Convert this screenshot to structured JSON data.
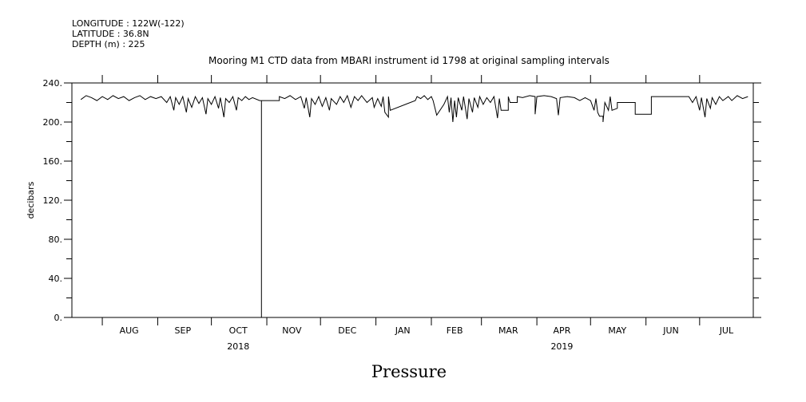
{
  "header": {
    "longitude": "LONGITUDE : 122W(-122)",
    "latitude": "LATITUDE : 36.8N",
    "depth": "DEPTH (m) : 225"
  },
  "chart_data": {
    "type": "line",
    "title": "Mooring M1 CTD data from MBARI instrument id 1798 at original sampling intervals",
    "bottom_title": "Pressure",
    "ylabel": "decibars",
    "ylim": [
      0,
      240
    ],
    "yticks": [
      {
        "value": 0,
        "label": "0."
      },
      {
        "value": 40,
        "label": "40."
      },
      {
        "value": 80,
        "label": "80."
      },
      {
        "value": 120,
        "label": "120."
      },
      {
        "value": 160,
        "label": "160."
      },
      {
        "value": 200,
        "label": "200."
      },
      {
        "value": 240,
        "label": "240."
      }
    ],
    "x_start": "2018-07-15",
    "x_end": "2019-07-31",
    "month_labels": [
      {
        "label": "AUG",
        "date": "2018-08-16"
      },
      {
        "label": "SEP",
        "date": "2018-09-15"
      },
      {
        "label": "OCT",
        "date": "2018-10-16"
      },
      {
        "label": "NOV",
        "date": "2018-11-15"
      },
      {
        "label": "DEC",
        "date": "2018-12-16"
      },
      {
        "label": "JAN",
        "date": "2019-01-16"
      },
      {
        "label": "FEB",
        "date": "2019-02-14"
      },
      {
        "label": "MAR",
        "date": "2019-03-16"
      },
      {
        "label": "APR",
        "date": "2019-04-15"
      },
      {
        "label": "MAY",
        "date": "2019-05-16"
      },
      {
        "label": "JUN",
        "date": "2019-06-15"
      },
      {
        "label": "JUL",
        "date": "2019-07-16"
      }
    ],
    "month_boundaries": [
      "2018-08-01",
      "2018-09-01",
      "2018-10-01",
      "2018-11-01",
      "2018-12-01",
      "2019-01-01",
      "2019-02-01",
      "2019-03-01",
      "2019-04-01",
      "2019-05-01",
      "2019-06-01",
      "2019-07-01"
    ],
    "year_labels": [
      {
        "label": "2018",
        "date": "2018-10-16"
      },
      {
        "label": "2019",
        "date": "2019-04-15"
      }
    ],
    "series": [
      {
        "points": [
          [
            "2018-07-20",
            223
          ],
          [
            "2018-07-23",
            227
          ],
          [
            "2018-07-26",
            225
          ],
          [
            "2018-07-29",
            222
          ],
          [
            "2018-08-01",
            226
          ],
          [
            "2018-08-04",
            223
          ],
          [
            "2018-08-07",
            227
          ],
          [
            "2018-08-10",
            224
          ],
          [
            "2018-08-13",
            226
          ],
          [
            "2018-08-16",
            222
          ],
          [
            "2018-08-19",
            225
          ],
          [
            "2018-08-22",
            227
          ],
          [
            "2018-08-25",
            223
          ],
          [
            "2018-08-28",
            226
          ],
          [
            "2018-08-31",
            224
          ],
          [
            "2018-09-03",
            226
          ],
          [
            "2018-09-06",
            220
          ],
          [
            "2018-09-08",
            226
          ],
          [
            "2018-09-10",
            212
          ],
          [
            "2018-09-11",
            225
          ],
          [
            "2018-09-13",
            218
          ],
          [
            "2018-09-15",
            226
          ],
          [
            "2018-09-17",
            210
          ],
          [
            "2018-09-18",
            224
          ],
          [
            "2018-09-20",
            215
          ],
          [
            "2018-09-22",
            226
          ],
          [
            "2018-09-24",
            219
          ],
          [
            "2018-09-26",
            225
          ],
          [
            "2018-09-28",
            208
          ],
          [
            "2018-09-29",
            224
          ],
          [
            "2018-10-01",
            218
          ],
          [
            "2018-10-03",
            226
          ],
          [
            "2018-10-05",
            214
          ],
          [
            "2018-10-06",
            225
          ],
          [
            "2018-10-08",
            205
          ],
          [
            "2018-10-09",
            224
          ],
          [
            "2018-10-11",
            220
          ],
          [
            "2018-10-13",
            226
          ],
          [
            "2018-10-15",
            212
          ],
          [
            "2018-10-16",
            225
          ],
          [
            "2018-10-18",
            222
          ],
          [
            "2018-10-20",
            226
          ],
          [
            "2018-10-22",
            223
          ],
          [
            "2018-10-24",
            225
          ],
          [
            "2018-10-28",
            222
          ],
          [
            "2018-10-29",
            222
          ],
          [
            "2018-10-29",
            0
          ],
          [
            "2018-10-29",
            222
          ],
          [
            "2018-11-08",
            222
          ],
          [
            "2018-11-08",
            226
          ],
          [
            "2018-11-11",
            224
          ],
          [
            "2018-11-14",
            227
          ],
          [
            "2018-11-17",
            223
          ],
          [
            "2018-11-20",
            226
          ],
          [
            "2018-11-22",
            214
          ],
          [
            "2018-11-23",
            225
          ],
          [
            "2018-11-25",
            205
          ],
          [
            "2018-11-26",
            224
          ],
          [
            "2018-11-28",
            218
          ],
          [
            "2018-11-30",
            226
          ],
          [
            "2018-12-02",
            216
          ],
          [
            "2018-12-04",
            225
          ],
          [
            "2018-12-06",
            212
          ],
          [
            "2018-12-07",
            224
          ],
          [
            "2018-12-10",
            218
          ],
          [
            "2018-12-12",
            226
          ],
          [
            "2018-12-14",
            220
          ],
          [
            "2018-12-16",
            227
          ],
          [
            "2018-12-18",
            215
          ],
          [
            "2018-12-20",
            226
          ],
          [
            "2018-12-22",
            222
          ],
          [
            "2018-12-24",
            227
          ],
          [
            "2018-12-27",
            220
          ],
          [
            "2018-12-30",
            225
          ],
          [
            "2018-12-31",
            215
          ],
          [
            "2019-01-02",
            224
          ],
          [
            "2019-01-04",
            216
          ],
          [
            "2019-01-05",
            226
          ],
          [
            "2019-01-06",
            210
          ],
          [
            "2019-01-08",
            205
          ],
          [
            "2019-01-08",
            226
          ],
          [
            "2019-01-09",
            212
          ],
          [
            "2019-01-23",
            222
          ],
          [
            "2019-01-24",
            226
          ],
          [
            "2019-01-26",
            224
          ],
          [
            "2019-01-28",
            227
          ],
          [
            "2019-01-30",
            223
          ],
          [
            "2019-02-01",
            226
          ],
          [
            "2019-02-02",
            222
          ],
          [
            "2019-02-04",
            207
          ],
          [
            "2019-02-08",
            218
          ],
          [
            "2019-02-10",
            226
          ],
          [
            "2019-02-11",
            210
          ],
          [
            "2019-02-12",
            225
          ],
          [
            "2019-02-13",
            200
          ],
          [
            "2019-02-14",
            222
          ],
          [
            "2019-02-15",
            205
          ],
          [
            "2019-02-16",
            225
          ],
          [
            "2019-02-18",
            212
          ],
          [
            "2019-02-19",
            226
          ],
          [
            "2019-02-21",
            203
          ],
          [
            "2019-02-22",
            224
          ],
          [
            "2019-02-24",
            210
          ],
          [
            "2019-02-25",
            225
          ],
          [
            "2019-02-27",
            215
          ],
          [
            "2019-02-28",
            226
          ],
          [
            "2019-03-02",
            218
          ],
          [
            "2019-03-04",
            225
          ],
          [
            "2019-03-06",
            220
          ],
          [
            "2019-03-08",
            226
          ],
          [
            "2019-03-10",
            204
          ],
          [
            "2019-03-11",
            224
          ],
          [
            "2019-03-12",
            212
          ],
          [
            "2019-03-16",
            212
          ],
          [
            "2019-03-16",
            226
          ],
          [
            "2019-03-17",
            220
          ],
          [
            "2019-03-21",
            220
          ],
          [
            "2019-03-21",
            226
          ],
          [
            "2019-03-24",
            225
          ],
          [
            "2019-03-28",
            227
          ],
          [
            "2019-03-31",
            226
          ],
          [
            "2019-03-31",
            208
          ],
          [
            "2019-04-01",
            226
          ],
          [
            "2019-04-05",
            227
          ],
          [
            "2019-04-09",
            226
          ],
          [
            "2019-04-12",
            224
          ],
          [
            "2019-04-13",
            207
          ],
          [
            "2019-04-14",
            225
          ],
          [
            "2019-04-18",
            226
          ],
          [
            "2019-04-22",
            225
          ],
          [
            "2019-04-25",
            222
          ],
          [
            "2019-04-28",
            225
          ],
          [
            "2019-05-01",
            222
          ],
          [
            "2019-05-03",
            212
          ],
          [
            "2019-05-04",
            224
          ],
          [
            "2019-05-05",
            210
          ],
          [
            "2019-05-06",
            206
          ],
          [
            "2019-05-08",
            206
          ],
          [
            "2019-05-08",
            200
          ],
          [
            "2019-05-09",
            220
          ],
          [
            "2019-05-11",
            212
          ],
          [
            "2019-05-12",
            226
          ],
          [
            "2019-05-13",
            212
          ],
          [
            "2019-05-16",
            214
          ],
          [
            "2019-05-16",
            220
          ],
          [
            "2019-05-26",
            220
          ],
          [
            "2019-05-26",
            208
          ],
          [
            "2019-06-04",
            208
          ],
          [
            "2019-06-04",
            226
          ],
          [
            "2019-06-20",
            226
          ],
          [
            "2019-06-25",
            226
          ],
          [
            "2019-06-27",
            220
          ],
          [
            "2019-06-29",
            226
          ],
          [
            "2019-07-01",
            212
          ],
          [
            "2019-07-02",
            225
          ],
          [
            "2019-07-04",
            205
          ],
          [
            "2019-07-05",
            224
          ],
          [
            "2019-07-07",
            214
          ],
          [
            "2019-07-08",
            225
          ],
          [
            "2019-07-10",
            218
          ],
          [
            "2019-07-12",
            226
          ],
          [
            "2019-07-14",
            222
          ],
          [
            "2019-07-17",
            226
          ],
          [
            "2019-07-19",
            222
          ],
          [
            "2019-07-22",
            227
          ],
          [
            "2019-07-25",
            224
          ],
          [
            "2019-07-28",
            226
          ]
        ]
      }
    ]
  }
}
